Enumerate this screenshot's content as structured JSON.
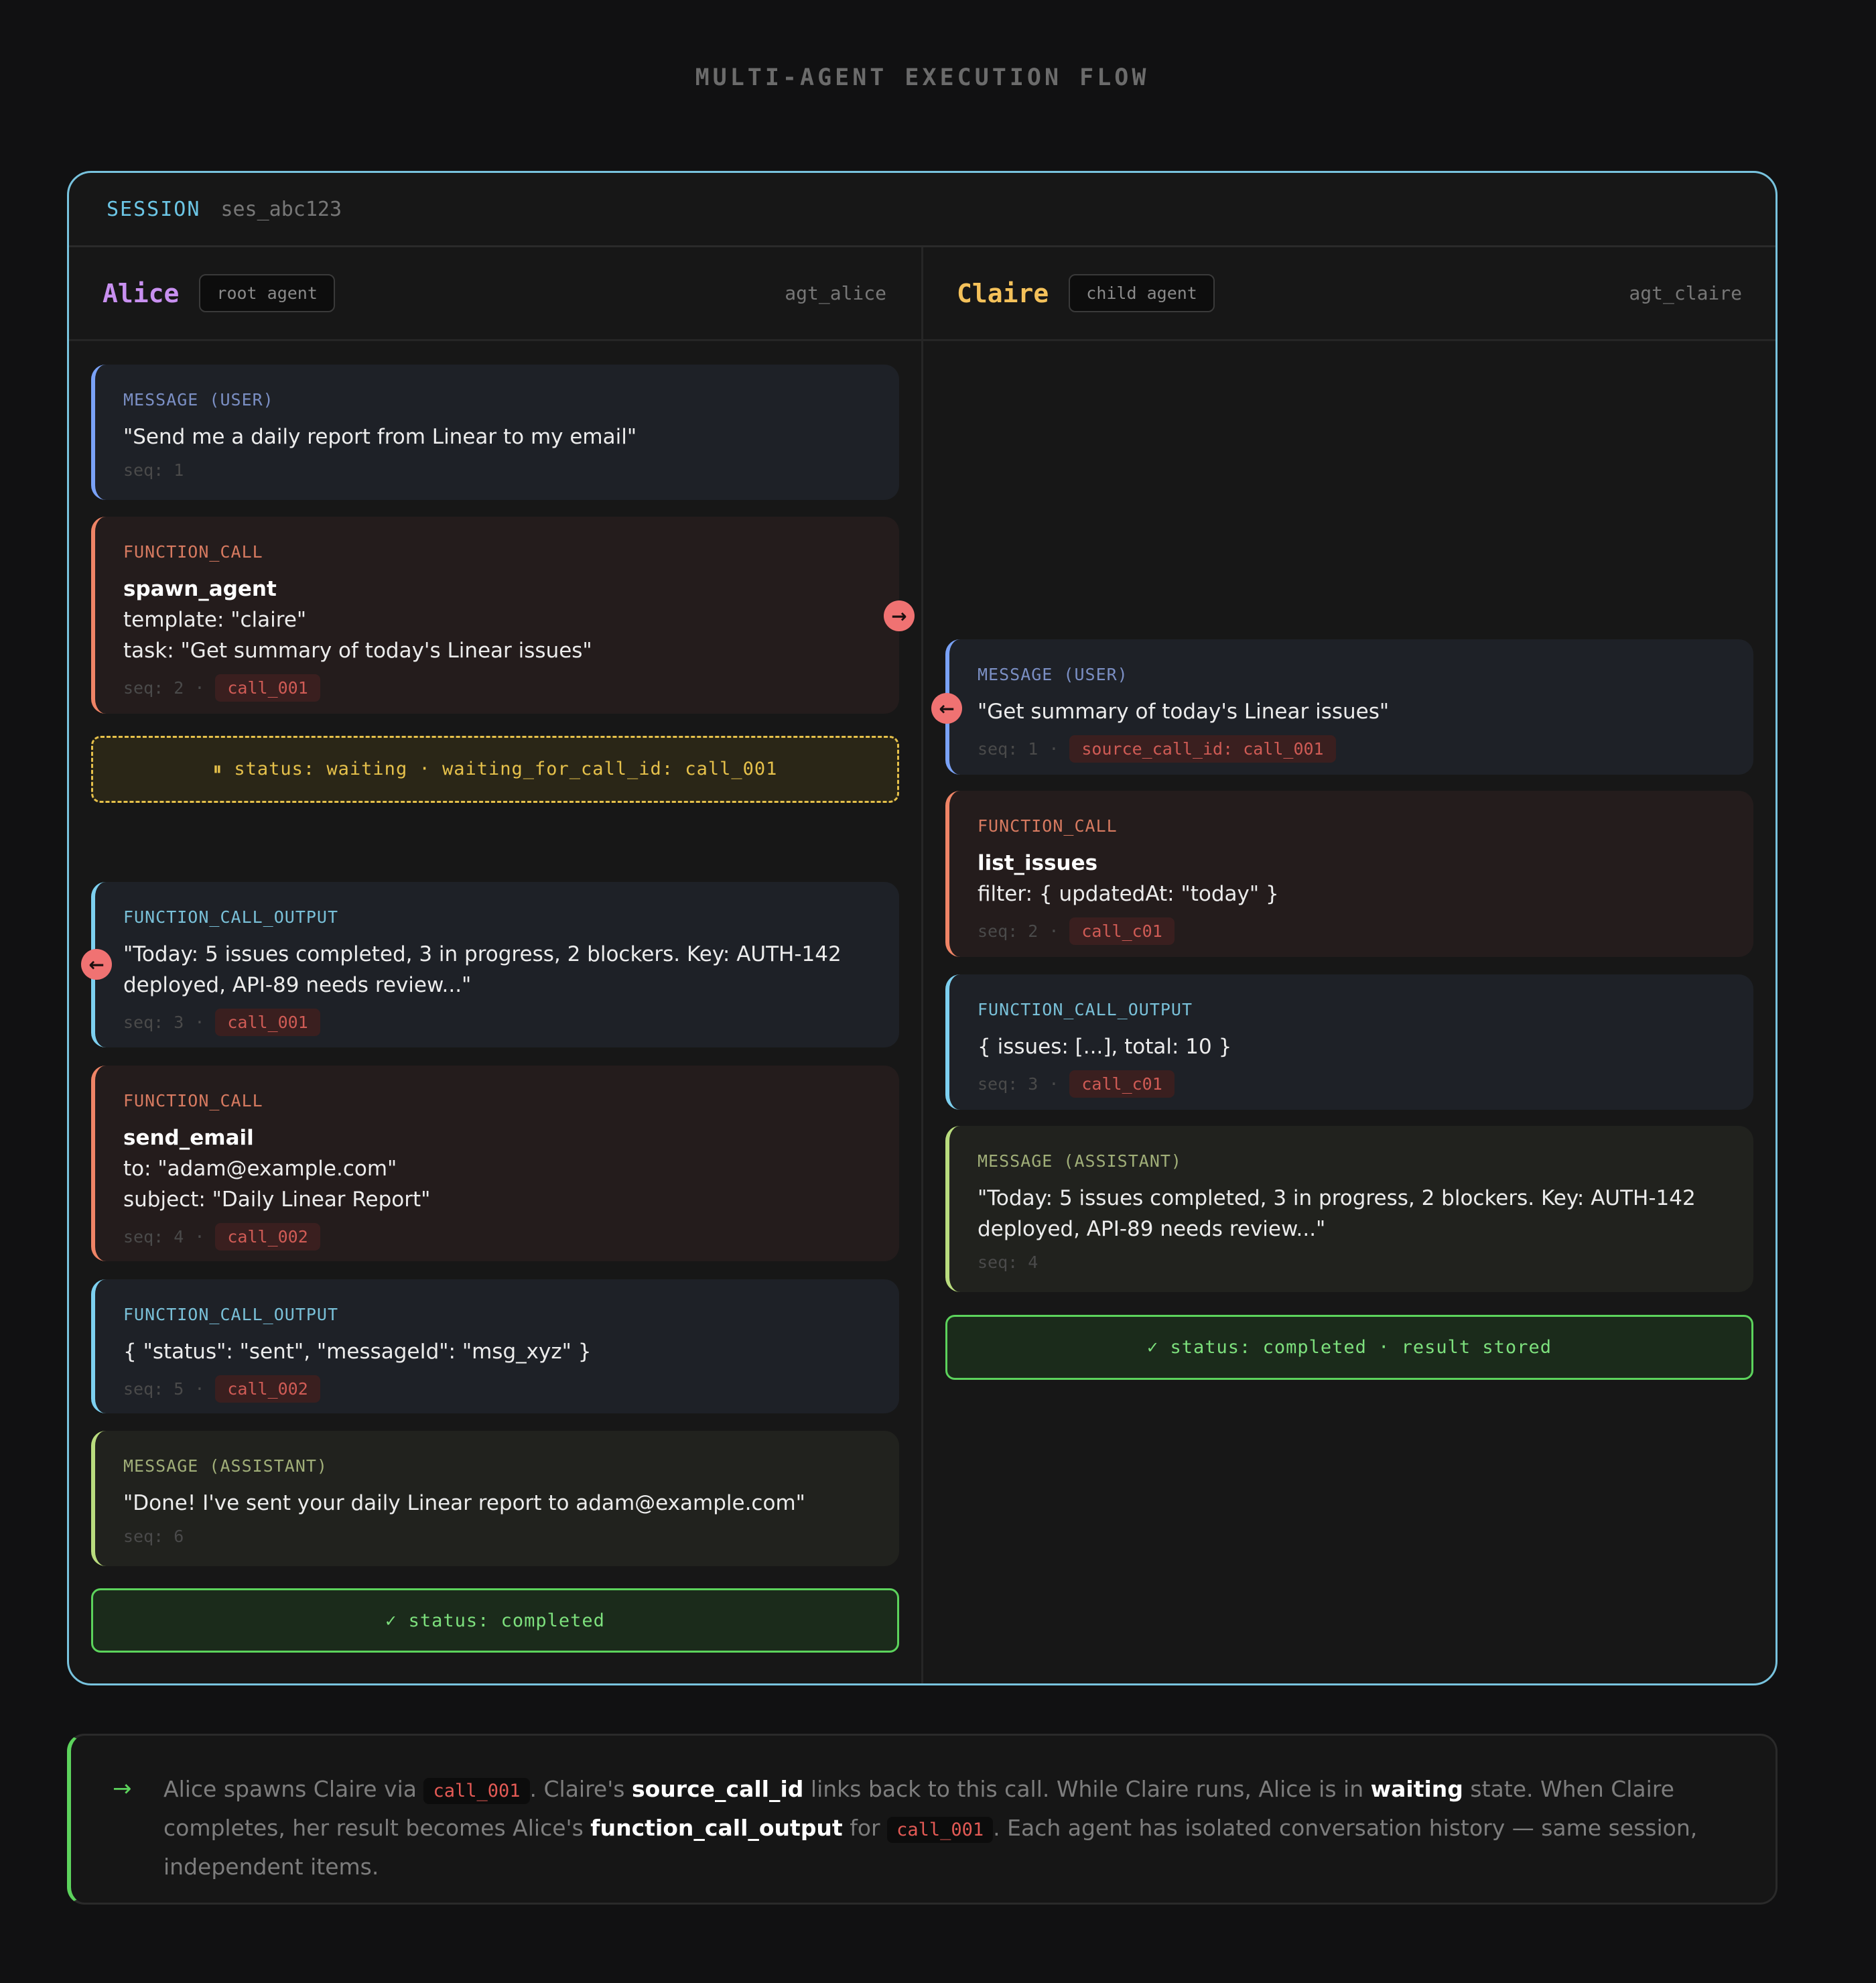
{
  "title": "MULTI-AGENT EXECUTION FLOW",
  "session": {
    "label": "SESSION",
    "id": "ses_abc123"
  },
  "colors": {
    "session_border": "#78c3de",
    "user": "#7aa2f7",
    "function_call": "#ef8466",
    "function_call_output": "#7dd0f0",
    "assistant": "#b9dc7e",
    "waiting": "#e5c04a",
    "completed": "#5cd35c",
    "alice": "#c890f0",
    "claire": "#f4c15a"
  },
  "agents": [
    {
      "name": "Alice",
      "role": "root agent",
      "id": "agt_alice",
      "items": [
        {
          "type": "user",
          "label": "MESSAGE (USER)",
          "lines": [
            "\"Send me a daily report from Linear to my email\""
          ],
          "seq": "seq: 1"
        },
        {
          "type": "call",
          "label": "FUNCTION_CALL",
          "title": "spawn_agent",
          "lines": [
            "template: \"claire\"",
            "task: \"Get summary of today's Linear issues\""
          ],
          "seq": "seq: 2",
          "badge": "call_001",
          "arrow": "arrow-right-icon"
        },
        {
          "type": "out",
          "label": "FUNCTION_CALL_OUTPUT",
          "lines": [
            "\"Today: 5 issues completed, 3 in progress, 2 blockers. Key: AUTH-142",
            "deployed, API-89 needs review...\""
          ],
          "seq": "seq: 3",
          "badge": "call_001",
          "arrow": "arrow-left-icon"
        },
        {
          "type": "call",
          "label": "FUNCTION_CALL",
          "title": "send_email",
          "lines": [
            "to: \"adam@example.com\"",
            "subject: \"Daily Linear Report\""
          ],
          "seq": "seq: 4",
          "badge": "call_002"
        },
        {
          "type": "out",
          "label": "FUNCTION_CALL_OUTPUT",
          "lines": [
            "{ \"status\": \"sent\", \"messageId\": \"msg_xyz\" }"
          ],
          "seq": "seq: 5",
          "badge": "call_002"
        },
        {
          "type": "asst",
          "label": "MESSAGE (ASSISTANT)",
          "lines": [
            "\"Done! I've sent your daily Linear report to adam@example.com\""
          ],
          "seq": "seq: 6"
        }
      ],
      "waiting": "⏸ status: waiting · waiting_for_call_id: call_001",
      "completed": "✓ status: completed"
    },
    {
      "name": "Claire",
      "role": "child agent",
      "id": "agt_claire",
      "items": [
        {
          "type": "user",
          "label": "MESSAGE (USER)",
          "lines": [
            "\"Get summary of today's Linear issues\""
          ],
          "seq": "seq: 1",
          "badge": "source_call_id: call_001",
          "arrow": "arrow-left-icon"
        },
        {
          "type": "call",
          "label": "FUNCTION_CALL",
          "title": "list_issues",
          "lines": [
            "filter: { updatedAt: \"today\" }"
          ],
          "seq": "seq: 2",
          "badge": "call_c01"
        },
        {
          "type": "out",
          "label": "FUNCTION_CALL_OUTPUT",
          "lines": [
            "{ issues: [...], total: 10 }"
          ],
          "seq": "seq: 3",
          "badge": "call_c01"
        },
        {
          "type": "asst",
          "label": "MESSAGE (ASSISTANT)",
          "lines": [
            "\"Today: 5 issues completed, 3 in progress, 2 blockers. Key: AUTH-142",
            "deployed, API-89 needs review...\""
          ],
          "seq": "seq: 4"
        }
      ],
      "completed": "✓ status: completed · result stored"
    }
  ],
  "footer": {
    "icon": "arrow-right-icon",
    "segments": [
      {
        "t": "Alice spawns Claire via "
      },
      {
        "t": "call_001",
        "k": "code"
      },
      {
        "t": ". Claire's "
      },
      {
        "t": "source_call_id",
        "k": "b"
      },
      {
        "t": " links back to this call. While Claire runs, Alice is in "
      },
      {
        "t": "waiting",
        "k": "b"
      },
      {
        "t": " state. When Claire completes, her result becomes Alice's "
      },
      {
        "t": "function_call_output",
        "k": "b"
      },
      {
        "t": " for "
      },
      {
        "t": "call_001",
        "k": "code"
      },
      {
        "t": ". Each agent has isolated conversation history — same session, independent items."
      }
    ]
  }
}
